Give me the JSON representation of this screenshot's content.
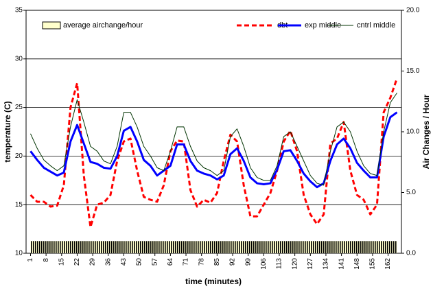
{
  "chart_data": {
    "type": "line",
    "xlabel": "time (minutes)",
    "ylabel": "temperature (C)",
    "y2label": "Air Changes / Hour",
    "xlim": [
      -1,
      168
    ],
    "xticks": [
      1,
      8,
      15,
      22,
      29,
      36,
      43,
      50,
      57,
      64,
      71,
      78,
      85,
      92,
      99,
      106,
      113,
      120,
      127,
      134,
      141,
      148,
      155,
      162
    ],
    "ylim": [
      10,
      35
    ],
    "yticks": [
      10,
      15,
      20,
      25,
      30,
      35
    ],
    "y2lim": [
      0,
      20
    ],
    "y2ticks": [
      {
        "value": 0,
        "label": "0.0"
      },
      {
        "value": 5,
        "label": "5.0"
      },
      {
        "value": 10,
        "label": "10.0"
      },
      {
        "value": 15,
        "label": "15.0"
      },
      {
        "value": 20,
        "label": "20.0"
      }
    ],
    "grid": true,
    "legend": "top",
    "x": [
      1,
      4,
      7,
      10,
      13,
      16,
      19,
      22,
      25,
      28,
      31,
      34,
      37,
      40,
      43,
      46,
      49,
      52,
      55,
      58,
      61,
      64,
      67,
      70,
      73,
      76,
      79,
      82,
      85,
      88,
      91,
      94,
      97,
      100,
      103,
      106,
      109,
      112,
      115,
      118,
      121,
      124,
      127,
      130,
      133,
      136,
      139,
      142,
      145,
      148,
      151,
      154,
      157,
      160,
      163,
      166
    ],
    "series": [
      {
        "name": "average airchange/hour",
        "color": "#ffffcc",
        "kind": "area",
        "axis": "y2",
        "values": [
          1,
          1,
          1,
          1,
          1,
          1,
          1,
          1,
          1,
          1,
          1,
          1,
          1,
          1,
          1,
          1,
          1,
          1,
          1,
          1,
          1,
          1,
          1,
          1,
          1,
          1,
          1,
          1,
          1,
          1,
          1,
          1,
          1,
          1,
          1,
          1,
          1,
          1,
          1,
          1,
          1,
          1,
          1,
          1,
          1,
          1,
          1,
          1,
          1,
          1,
          1,
          1,
          1,
          1,
          1,
          1
        ]
      },
      {
        "name": "dbt",
        "color": "#ff0000",
        "style": "dashed",
        "values": [
          16,
          15.3,
          15.3,
          14.8,
          14.9,
          17,
          25,
          27.5,
          18,
          12.7,
          15,
          15.2,
          16,
          19.5,
          21.5,
          21.8,
          18.5,
          15.8,
          15.5,
          15.3,
          17,
          20.5,
          21.6,
          21.5,
          16.5,
          14.8,
          15.5,
          15.2,
          16.2,
          19.5,
          22.2,
          21.5,
          17,
          13.8,
          13.8,
          15,
          16.2,
          18.5,
          21.5,
          22.6,
          20.5,
          16,
          14,
          13,
          14,
          21.3,
          21.8,
          23.5,
          18.5,
          16,
          15.5,
          14,
          15,
          24.5,
          26,
          28
        ]
      },
      {
        "name": "exp middle",
        "color": "#0000ff",
        "style": "thick",
        "values": [
          20.5,
          19.6,
          18.8,
          18.4,
          18,
          18.3,
          21.5,
          23.2,
          21.3,
          19.4,
          19.2,
          18.8,
          18.7,
          20,
          22.6,
          23,
          21.5,
          19.6,
          19,
          18,
          18.5,
          19,
          21.2,
          21.2,
          19.5,
          18.5,
          18.2,
          18,
          17.6,
          18,
          20.2,
          20.8,
          19.5,
          17.8,
          17.2,
          17.1,
          17.2,
          18.6,
          20.5,
          20.6,
          19.5,
          18.2,
          17.4,
          16.8,
          17.2,
          19.5,
          21.2,
          21.8,
          20.8,
          19.3,
          18.5,
          17.8,
          17.8,
          22,
          24,
          24.5
        ]
      },
      {
        "name": "cntrl middle",
        "color": "#003300",
        "style": "thin",
        "values": [
          22.3,
          20.8,
          19.6,
          19,
          18.5,
          19,
          23,
          25.8,
          23.5,
          21,
          20.5,
          19.5,
          19.2,
          21,
          24.5,
          24.5,
          23,
          21,
          20,
          18.8,
          18.5,
          20.5,
          23,
          23,
          21,
          19.5,
          18.8,
          18.5,
          18,
          18.5,
          22,
          22.8,
          21,
          18.8,
          17.8,
          17.5,
          17.5,
          19,
          22,
          22.5,
          21,
          19.5,
          18,
          17.2,
          17,
          20.5,
          23,
          23.5,
          22.5,
          20.5,
          19,
          18.2,
          18,
          22.5,
          25.5,
          26.5
        ]
      }
    ]
  }
}
